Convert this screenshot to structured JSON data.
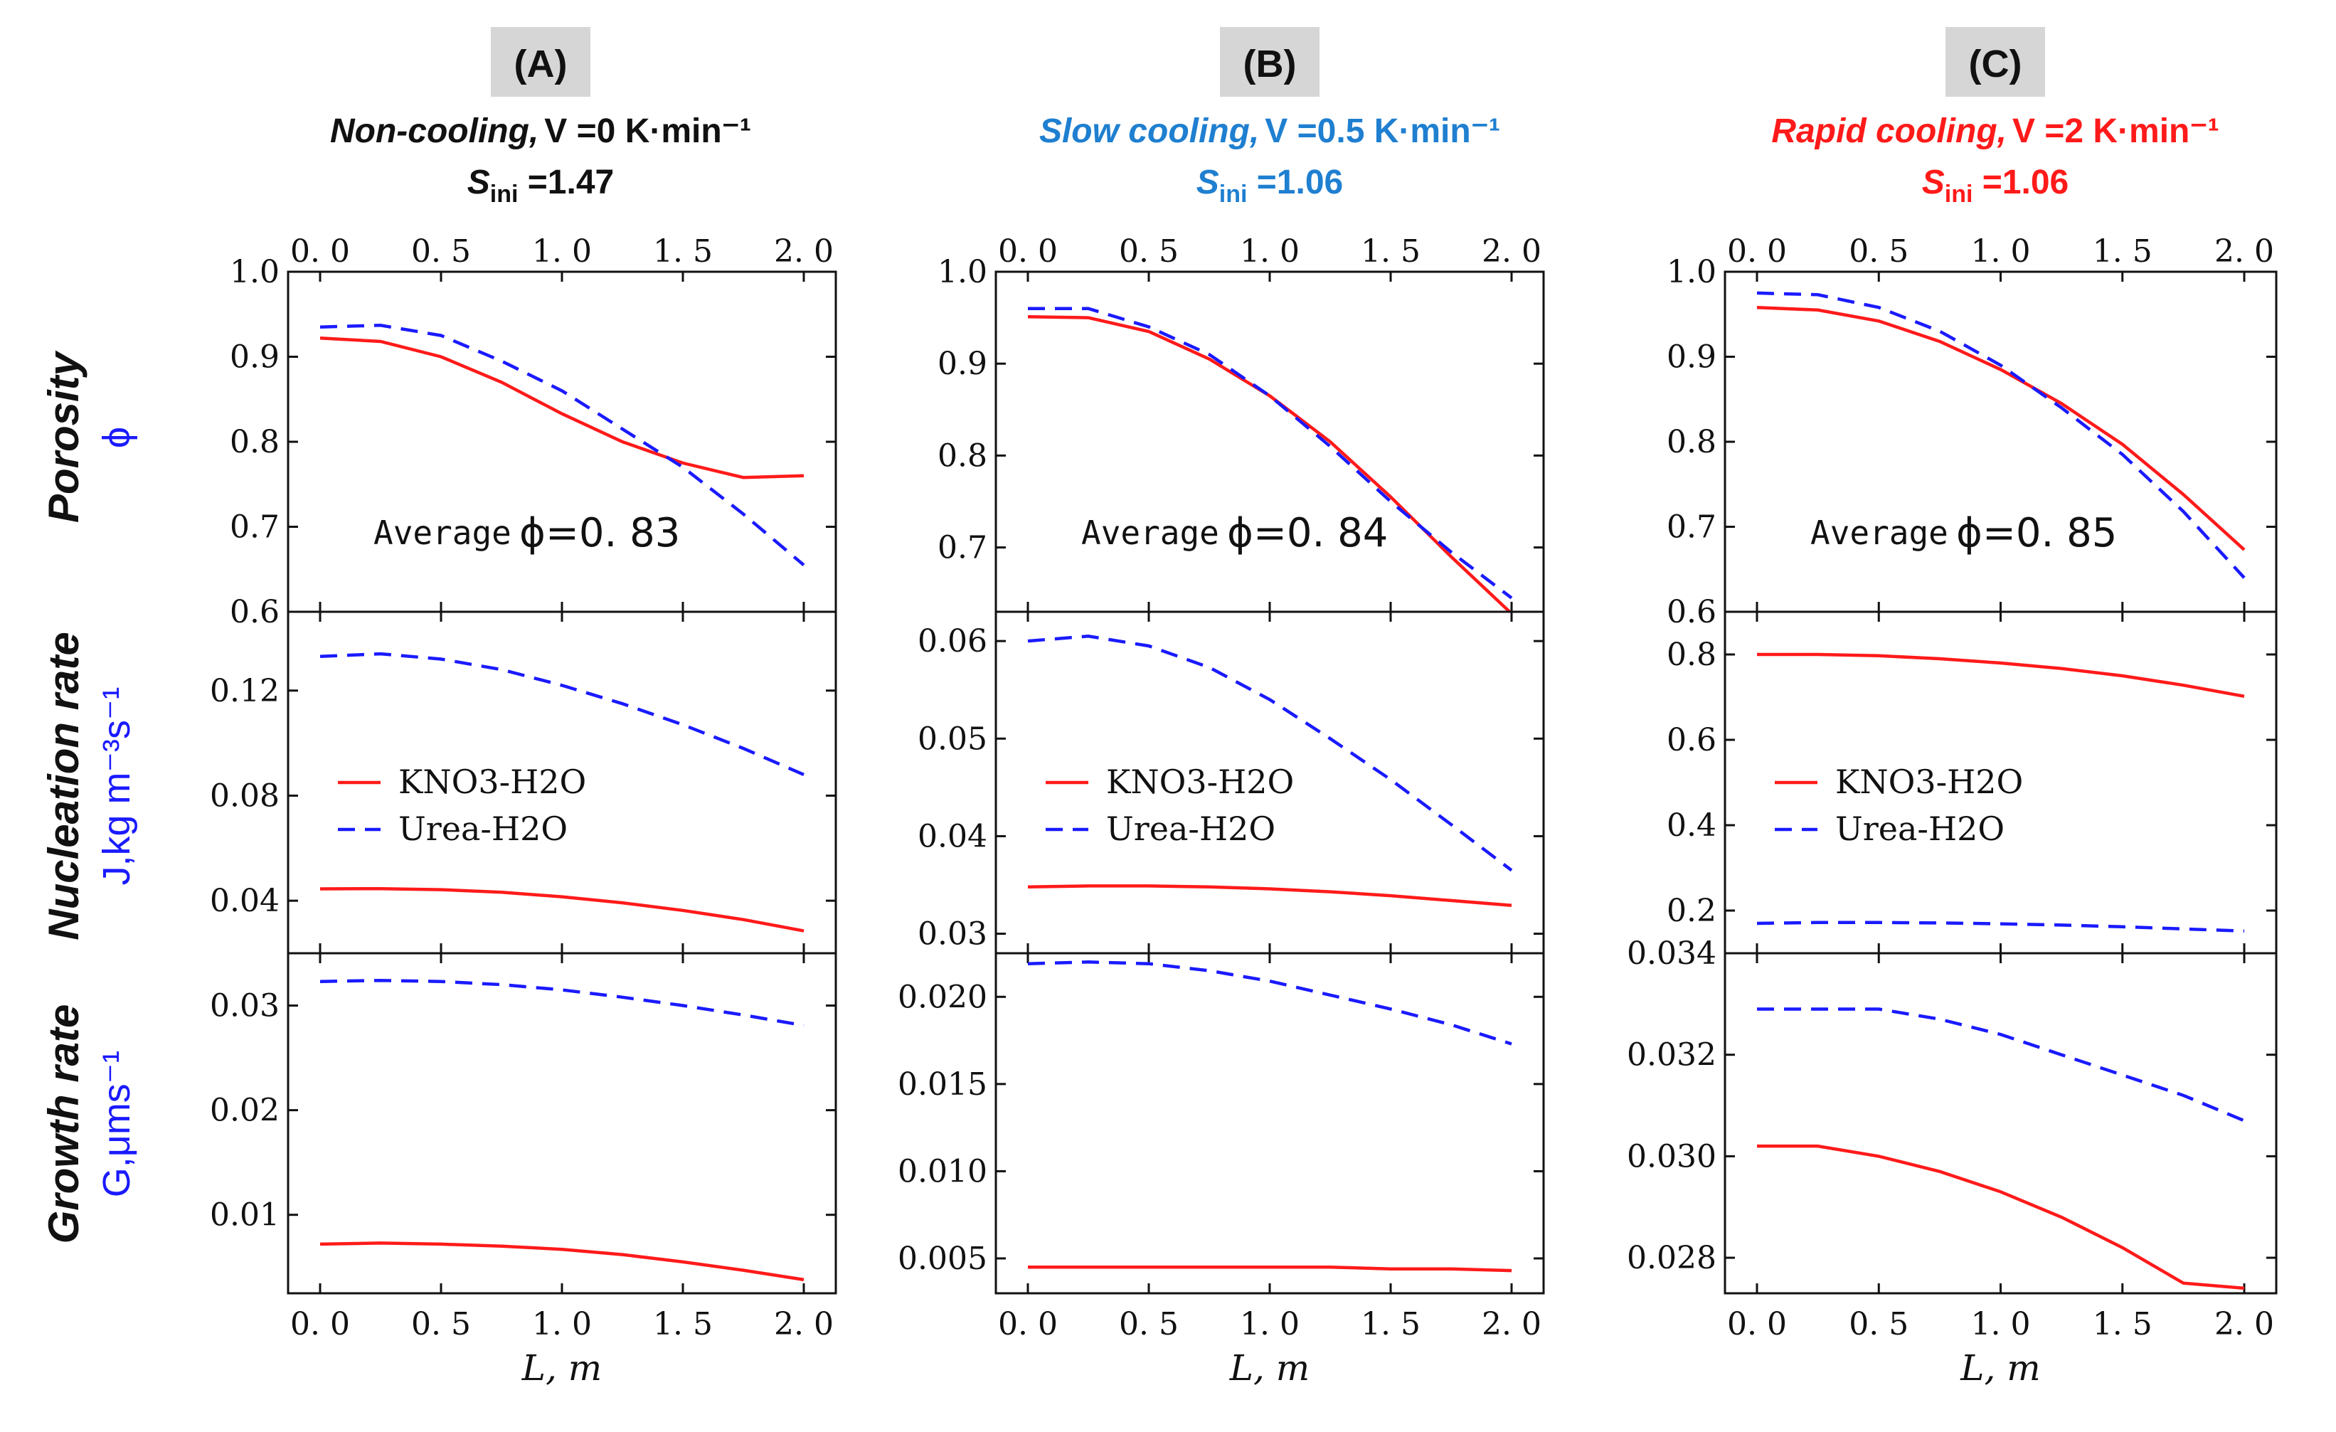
{
  "figure": {
    "x_axis_label": "L, m",
    "row_labels": [
      {
        "label": "Porosity",
        "sub": "ϕ"
      },
      {
        "label": "Nucleation rate",
        "sub": "J,kg m⁻³s⁻¹"
      },
      {
        "label": "Growth rate",
        "sub": "G,μms⁻¹"
      }
    ],
    "legend": [
      "KNO3-H2O",
      "Urea-H2O"
    ],
    "series_colors": {
      "KNO3-H2O": "#ff1a1a",
      "Urea-H2O": "#1a1aff"
    }
  },
  "columns": [
    {
      "tag": "(A)",
      "condition": "Non-cooling,",
      "rate": "V =0 K·min⁻¹",
      "sini": "S",
      "sini_sub": "ini",
      "sini_val": " =1.47",
      "color": "#111111",
      "avg_label": "Average",
      "avg_value": "ϕ=0. 83"
    },
    {
      "tag": "(B)",
      "condition": "Slow cooling,",
      "rate": "V =0.5 K·min⁻¹",
      "sini": "S",
      "sini_sub": "ini",
      "sini_val": " =1.06",
      "color": "#1f7fd0",
      "avg_label": "Average",
      "avg_value": "ϕ=0. 84"
    },
    {
      "tag": "(C)",
      "condition": "Rapid cooling,",
      "rate": "V =2 K·min⁻¹",
      "sini": "S",
      "sini_sub": "ini",
      "sini_val": " =1.06",
      "color": "#ff1a1a",
      "avg_label": "Average",
      "avg_value": "ϕ=0. 85"
    }
  ],
  "chart_data": [
    {
      "type": "line",
      "panel": "A-porosity",
      "xlabel": "L, m",
      "ylabel": "Porosity ϕ",
      "xlim": [
        0,
        2
      ],
      "ylim": [
        0.6,
        1.0
      ],
      "yticks": [
        {
          "v": 0.6,
          "t": "0.6"
        },
        {
          "v": 0.7,
          "t": "0.7"
        },
        {
          "v": 0.8,
          "t": "0.8"
        },
        {
          "v": 0.9,
          "t": "0.9"
        },
        {
          "v": 1.0,
          "t": "1.0"
        }
      ],
      "x": [
        0,
        0.25,
        0.5,
        0.75,
        1.0,
        1.25,
        1.5,
        1.75,
        2.0
      ],
      "series": [
        {
          "name": "KNO3-H2O",
          "values": [
            0.922,
            0.918,
            0.9,
            0.87,
            0.833,
            0.8,
            0.775,
            0.758,
            0.76
          ]
        },
        {
          "name": "Urea-H2O",
          "values": [
            0.935,
            0.937,
            0.925,
            0.895,
            0.86,
            0.815,
            0.77,
            0.715,
            0.655
          ]
        }
      ]
    },
    {
      "type": "line",
      "panel": "A-nucleation",
      "xlim": [
        0,
        2
      ],
      "ylim": [
        0.02,
        0.15
      ],
      "yticks": [
        {
          "v": 0.04,
          "t": "0.04"
        },
        {
          "v": 0.08,
          "t": "0.08"
        },
        {
          "v": 0.12,
          "t": "0.12"
        }
      ],
      "x": [
        0,
        0.25,
        0.5,
        0.75,
        1.0,
        1.25,
        1.5,
        1.75,
        2.0
      ],
      "series": [
        {
          "name": "KNO3-H2O",
          "values": [
            0.0445,
            0.0446,
            0.0442,
            0.0432,
            0.0415,
            0.0392,
            0.0363,
            0.0328,
            0.0285
          ]
        },
        {
          "name": "Urea-H2O",
          "values": [
            0.133,
            0.134,
            0.132,
            0.128,
            0.122,
            0.115,
            0.107,
            0.098,
            0.088
          ]
        }
      ]
    },
    {
      "type": "line",
      "panel": "A-growth",
      "xlim": [
        0,
        2
      ],
      "ylim": [
        0.0025,
        0.035
      ],
      "yticks": [
        {
          "v": 0.01,
          "t": "0.01"
        },
        {
          "v": 0.02,
          "t": "0.02"
        },
        {
          "v": 0.03,
          "t": "0.03"
        }
      ],
      "x": [
        0,
        0.25,
        0.5,
        0.75,
        1.0,
        1.25,
        1.5,
        1.75,
        2.0
      ],
      "series": [
        {
          "name": "KNO3-H2O",
          "values": [
            0.0072,
            0.0073,
            0.0072,
            0.007,
            0.0067,
            0.0062,
            0.0055,
            0.0047,
            0.0038
          ]
        },
        {
          "name": "Urea-H2O",
          "values": [
            0.0323,
            0.0324,
            0.0323,
            0.032,
            0.0315,
            0.0308,
            0.03,
            0.0291,
            0.0281
          ]
        }
      ]
    },
    {
      "type": "line",
      "panel": "B-porosity",
      "xlim": [
        0,
        2
      ],
      "ylim": [
        0.63,
        1.0
      ],
      "yticks": [
        {
          "v": 0.7,
          "t": "0.7"
        },
        {
          "v": 0.8,
          "t": "0.8"
        },
        {
          "v": 0.9,
          "t": "0.9"
        },
        {
          "v": 1.0,
          "t": "1.0"
        }
      ],
      "x": [
        0,
        0.25,
        0.5,
        0.75,
        1.0,
        1.25,
        1.5,
        1.75,
        2.0
      ],
      "series": [
        {
          "name": "KNO3-H2O",
          "values": [
            0.951,
            0.95,
            0.935,
            0.905,
            0.865,
            0.815,
            0.755,
            0.69,
            0.628
          ]
        },
        {
          "name": "Urea-H2O",
          "values": [
            0.96,
            0.96,
            0.94,
            0.91,
            0.865,
            0.81,
            0.75,
            0.695,
            0.645
          ]
        }
      ]
    },
    {
      "type": "line",
      "panel": "B-nucleation",
      "xlim": [
        0,
        2
      ],
      "ylim": [
        0.028,
        0.063
      ],
      "yticks": [
        {
          "v": 0.03,
          "t": "0.03"
        },
        {
          "v": 0.04,
          "t": "0.04"
        },
        {
          "v": 0.05,
          "t": "0.05"
        },
        {
          "v": 0.06,
          "t": "0.06"
        }
      ],
      "x": [
        0,
        0.25,
        0.5,
        0.75,
        1.0,
        1.25,
        1.5,
        1.75,
        2.0
      ],
      "series": [
        {
          "name": "KNO3-H2O",
          "values": [
            0.0348,
            0.0349,
            0.0349,
            0.0348,
            0.0346,
            0.0343,
            0.0339,
            0.0334,
            0.0329
          ]
        },
        {
          "name": "Urea-H2O",
          "values": [
            0.06,
            0.0605,
            0.0595,
            0.0573,
            0.054,
            0.05,
            0.0458,
            0.0412,
            0.0365
          ]
        }
      ]
    },
    {
      "type": "line",
      "panel": "B-growth",
      "xlim": [
        0,
        2
      ],
      "ylim": [
        0.003,
        0.0225
      ],
      "yticks": [
        {
          "v": 0.005,
          "t": "0.005"
        },
        {
          "v": 0.01,
          "t": "0.010"
        },
        {
          "v": 0.015,
          "t": "0.015"
        },
        {
          "v": 0.02,
          "t": "0.020"
        }
      ],
      "x": [
        0,
        0.25,
        0.5,
        0.75,
        1.0,
        1.25,
        1.5,
        1.75,
        2.0
      ],
      "series": [
        {
          "name": "KNO3-H2O",
          "values": [
            0.0045,
            0.0045,
            0.0045,
            0.0045,
            0.0045,
            0.0045,
            0.0044,
            0.0044,
            0.0043
          ]
        },
        {
          "name": "Urea-H2O",
          "values": [
            0.0219,
            0.022,
            0.0219,
            0.0215,
            0.0209,
            0.0201,
            0.0193,
            0.0184,
            0.0173
          ]
        }
      ]
    },
    {
      "type": "line",
      "panel": "C-porosity",
      "xlim": [
        0,
        2
      ],
      "ylim": [
        0.6,
        1.0
      ],
      "yticks": [
        {
          "v": 0.6,
          "t": "0.6"
        },
        {
          "v": 0.7,
          "t": "0.7"
        },
        {
          "v": 0.8,
          "t": "0.8"
        },
        {
          "v": 0.9,
          "t": "0.9"
        },
        {
          "v": 1.0,
          "t": "1.0"
        }
      ],
      "x": [
        0,
        0.25,
        0.5,
        0.75,
        1.0,
        1.25,
        1.5,
        1.75,
        2.0
      ],
      "series": [
        {
          "name": "KNO3-H2O",
          "values": [
            0.958,
            0.955,
            0.942,
            0.918,
            0.885,
            0.845,
            0.797,
            0.738,
            0.673
          ]
        },
        {
          "name": "Urea-H2O",
          "values": [
            0.975,
            0.973,
            0.958,
            0.93,
            0.89,
            0.84,
            0.785,
            0.718,
            0.64
          ]
        }
      ]
    },
    {
      "type": "line",
      "panel": "C-nucleation",
      "xlim": [
        0,
        2
      ],
      "ylim": [
        0.1,
        0.9
      ],
      "yticks": [
        {
          "v": 0.2,
          "t": "0.2"
        },
        {
          "v": 0.4,
          "t": "0.4"
        },
        {
          "v": 0.6,
          "t": "0.6"
        },
        {
          "v": 0.8,
          "t": "0.8"
        }
      ],
      "x": [
        0,
        0.25,
        0.5,
        0.75,
        1.0,
        1.25,
        1.5,
        1.75,
        2.0
      ],
      "series": [
        {
          "name": "KNO3-H2O",
          "values": [
            0.8,
            0.8,
            0.797,
            0.79,
            0.78,
            0.767,
            0.75,
            0.728,
            0.702
          ]
        },
        {
          "name": "Urea-H2O",
          "values": [
            0.17,
            0.172,
            0.172,
            0.171,
            0.169,
            0.166,
            0.162,
            0.157,
            0.152
          ]
        }
      ]
    },
    {
      "type": "line",
      "panel": "C-growth",
      "xlim": [
        0,
        2
      ],
      "ylim": [
        0.0273,
        0.034
      ],
      "yticks": [
        {
          "v": 0.028,
          "t": "0.028"
        },
        {
          "v": 0.03,
          "t": "0.030"
        },
        {
          "v": 0.032,
          "t": "0.032"
        },
        {
          "v": 0.034,
          "t": "0.034"
        }
      ],
      "x": [
        0,
        0.25,
        0.5,
        0.75,
        1.0,
        1.25,
        1.5,
        1.75,
        2.0
      ],
      "series": [
        {
          "name": "KNO3-H2O",
          "values": [
            0.0302,
            0.0302,
            0.03,
            0.0297,
            0.0293,
            0.0288,
            0.0282,
            0.0275,
            0.0274
          ]
        },
        {
          "name": "Urea-H2O",
          "values": [
            0.0329,
            0.0329,
            0.0329,
            0.0327,
            0.0324,
            0.032,
            0.0316,
            0.0312,
            0.0307
          ]
        }
      ]
    }
  ],
  "x_ticks": [
    "0. 0",
    "0. 5",
    "1. 0",
    "1. 5",
    "2. 0"
  ]
}
